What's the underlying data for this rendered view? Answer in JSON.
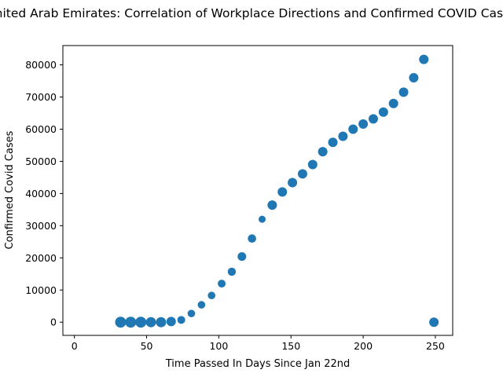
{
  "chart_data": {
    "type": "scatter",
    "title": "United Arab Emirates: Correlation of Workplace Directions and Confirmed COVID Cases",
    "xlabel": "Time Passed In Days Since Jan 22nd",
    "ylabel": "Confirmed Covid Cases",
    "xlim": [
      -8,
      262
    ],
    "ylim": [
      -4100,
      86000
    ],
    "xticks": [
      0,
      50,
      100,
      150,
      200,
      250
    ],
    "yticks": [
      0,
      10000,
      20000,
      30000,
      40000,
      50000,
      60000,
      70000,
      80000
    ],
    "marker_color": "#1f77b4",
    "size_note": "marker size varies (encodes workplace direction magnitude)",
    "points": [
      {
        "x": 32,
        "y": 0,
        "s": 7.0
      },
      {
        "x": 39,
        "y": 0,
        "s": 7.0
      },
      {
        "x": 46,
        "y": 0,
        "s": 7.0
      },
      {
        "x": 53,
        "y": 0,
        "s": 6.5
      },
      {
        "x": 60,
        "y": 0,
        "s": 6.5
      },
      {
        "x": 67,
        "y": 200,
        "s": 6.0
      },
      {
        "x": 74,
        "y": 700,
        "s": 5.0
      },
      {
        "x": 81,
        "y": 2700,
        "s": 4.8
      },
      {
        "x": 88,
        "y": 5400,
        "s": 4.8
      },
      {
        "x": 95,
        "y": 8300,
        "s": 4.8
      },
      {
        "x": 102,
        "y": 12000,
        "s": 5.0
      },
      {
        "x": 109,
        "y": 15700,
        "s": 5.2
      },
      {
        "x": 116,
        "y": 20400,
        "s": 5.5
      },
      {
        "x": 123,
        "y": 26000,
        "s": 5.3
      },
      {
        "x": 130,
        "y": 32000,
        "s": 4.5
      },
      {
        "x": 137,
        "y": 36400,
        "s": 6.0
      },
      {
        "x": 144,
        "y": 40500,
        "s": 6.0
      },
      {
        "x": 151,
        "y": 43400,
        "s": 6.0
      },
      {
        "x": 158,
        "y": 46100,
        "s": 6.0
      },
      {
        "x": 165,
        "y": 49000,
        "s": 6.0
      },
      {
        "x": 172,
        "y": 53000,
        "s": 6.0
      },
      {
        "x": 179,
        "y": 55900,
        "s": 6.0
      },
      {
        "x": 186,
        "y": 57800,
        "s": 6.0
      },
      {
        "x": 193,
        "y": 60000,
        "s": 6.0
      },
      {
        "x": 200,
        "y": 61600,
        "s": 6.0
      },
      {
        "x": 207,
        "y": 63200,
        "s": 6.0
      },
      {
        "x": 214,
        "y": 65300,
        "s": 6.0
      },
      {
        "x": 221,
        "y": 68000,
        "s": 6.0
      },
      {
        "x": 228,
        "y": 71500,
        "s": 6.0
      },
      {
        "x": 235,
        "y": 76000,
        "s": 6.0
      },
      {
        "x": 242,
        "y": 81700,
        "s": 6.0
      },
      {
        "x": 249,
        "y": 0,
        "s": 6.0
      }
    ]
  }
}
